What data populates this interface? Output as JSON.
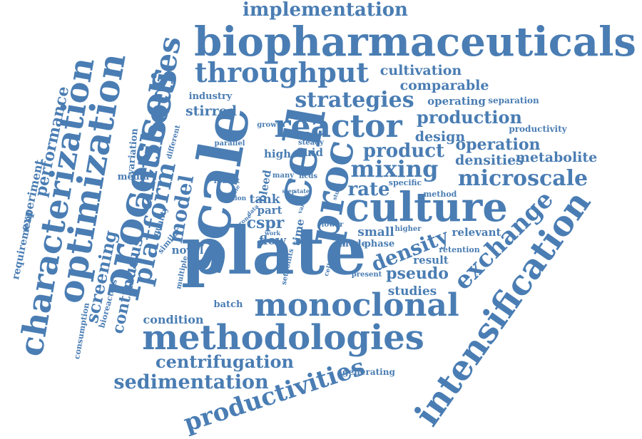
{
  "color": "#4a7db3",
  "words": [
    "implementation",
    "biopharmaceuticals",
    "throughput",
    "cultivation",
    "comparable",
    "strategies",
    "operating",
    "separation",
    "industry",
    "stirred",
    "production",
    "productivity",
    "reactor",
    "design",
    "operation",
    "growth",
    "product",
    "densities",
    "metabolite",
    "mixing",
    "microscale",
    "fluid",
    "high",
    "steady",
    "parallel",
    "different",
    "variation",
    "media",
    "model",
    "robust",
    "bleed",
    "many",
    "hcds",
    "specific",
    "rate",
    "culture",
    "tank",
    "step",
    "state",
    "method",
    "option",
    "part",
    "cspr",
    "lower",
    "small",
    "higher",
    "relevant",
    "density",
    "mode",
    "phase",
    "result",
    "retention",
    "flow",
    "novel",
    "similar",
    "quality",
    "pseudo",
    "present",
    "studies",
    "batch",
    "condition",
    "monoclonal",
    "methodologies",
    "centrifugation",
    "generating",
    "sedimentation",
    "scale",
    "cell",
    "proc",
    "plate",
    "intensification",
    "exchange",
    "productivities",
    "processes",
    "platform",
    "screening",
    "continuous",
    "antibodies",
    "optimization",
    "characterization",
    "performance",
    "experiment",
    "requirement",
    "consumption",
    "bioreactors",
    "multiple",
    "device",
    "setpoints",
    "time",
    "cellular",
    "work",
    "viable",
    "data",
    "prone",
    "study",
    "values"
  ]
}
